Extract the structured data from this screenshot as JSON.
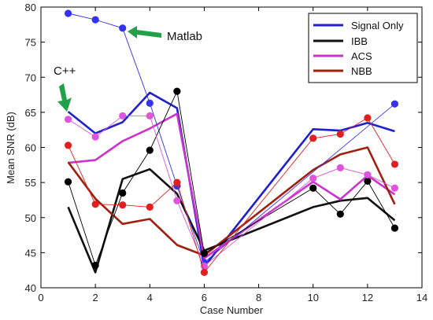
{
  "chart_data": {
    "type": "line",
    "xlabel": "Case Number",
    "ylabel": "Mean SNR (dB)",
    "xlim": [
      0,
      14
    ],
    "ylim": [
      40,
      80
    ],
    "xticks": [
      "0",
      "2",
      "4",
      "6",
      "8",
      "10",
      "12",
      "14"
    ],
    "yticks": [
      "40",
      "45",
      "50",
      "55",
      "60",
      "65",
      "70",
      "75",
      "80"
    ],
    "grid": false,
    "legend_position": "top-right",
    "legend": [
      "Signal Only",
      "IBB",
      "ACS",
      "NBB"
    ],
    "annotations": [
      {
        "text": "Matlab",
        "arrow_color": "#22a04a"
      },
      {
        "text": "C++",
        "arrow_color": "#22a04a"
      }
    ],
    "series": [
      {
        "name": "Signal Only",
        "label": "C++",
        "style": "line",
        "color": "#1f1fcf",
        "x": [
          1,
          2,
          3,
          4,
          5,
          6,
          10,
          11,
          12,
          13
        ],
        "y": [
          65.1,
          62.0,
          63.6,
          67.8,
          65.6,
          43.0,
          62.6,
          62.4,
          63.5,
          62.3
        ]
      },
      {
        "name": "IBB",
        "label": "C++",
        "style": "line",
        "color": "#111111",
        "x": [
          1,
          2,
          3,
          4,
          5,
          6,
          10,
          11,
          12,
          13
        ],
        "y": [
          51.5,
          42.2,
          55.5,
          56.9,
          53.4,
          45.3,
          51.5,
          52.4,
          52.8,
          49.6
        ]
      },
      {
        "name": "ACS",
        "label": "C++",
        "style": "line",
        "color": "#cc33cc",
        "x": [
          1,
          2,
          3,
          4,
          5,
          6,
          10,
          11,
          12,
          13
        ],
        "y": [
          57.8,
          58.2,
          60.9,
          62.7,
          64.8,
          44.2,
          55.1,
          52.6,
          56.0,
          53.3
        ]
      },
      {
        "name": "NBB",
        "label": "C++",
        "style": "line",
        "color": "#a02010",
        "x": [
          1,
          2,
          3,
          4,
          5,
          6,
          10,
          11,
          12,
          13
        ],
        "y": [
          57.9,
          52.7,
          49.1,
          49.8,
          46.1,
          44.6,
          56.8,
          59.0,
          60.0,
          51.9
        ]
      },
      {
        "name": "Signal Only",
        "label": "Matlab",
        "style": "markers",
        "color": "#3333ee",
        "x": [
          1,
          2,
          3,
          4,
          5,
          6,
          13
        ],
        "y": [
          79.1,
          78.2,
          77.0,
          66.3,
          54.5,
          43.6,
          66.2
        ]
      },
      {
        "name": "IBB",
        "label": "Matlab",
        "style": "markers",
        "color": "#000000",
        "x": [
          1,
          2,
          3,
          4,
          5,
          6,
          10,
          11,
          12,
          13
        ],
        "y": [
          55.1,
          43.2,
          53.5,
          59.6,
          68.0,
          44.9,
          54.2,
          50.5,
          55.2,
          48.5
        ]
      },
      {
        "name": "ACS",
        "label": "Matlab",
        "style": "markers",
        "color": "#dd55dd",
        "x": [
          1,
          2,
          3,
          4,
          5,
          6,
          10,
          11,
          12,
          13
        ],
        "y": [
          64.0,
          61.5,
          64.5,
          64.5,
          52.4,
          43.1,
          55.6,
          57.1,
          56.1,
          54.2
        ]
      },
      {
        "name": "NBB",
        "label": "Matlab",
        "style": "markers",
        "color": "#e02020",
        "x": [
          1,
          2,
          3,
          4,
          5,
          6,
          10,
          11,
          12,
          13
        ],
        "y": [
          60.3,
          51.9,
          51.8,
          51.5,
          55.0,
          42.2,
          61.3,
          61.9,
          64.2,
          57.6
        ]
      }
    ]
  }
}
